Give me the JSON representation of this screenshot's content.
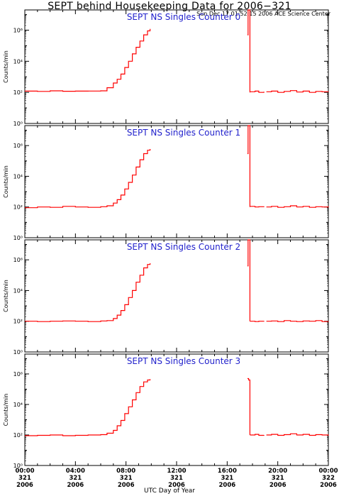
{
  "title": "SEPT behind Housekeeping Data for 2006−321",
  "subtitle": "Sun Dec 17 01:52:15 2006 ACE Science Center",
  "xlabel": "UTC Day of Year",
  "colors": {
    "series": "#ff0000",
    "panel_title": "#2222cc",
    "axes": "#000000"
  },
  "chart_data": {
    "type": "line",
    "x_ticks": [
      {
        "time": "00:00",
        "day": "321",
        "year": "2006"
      },
      {
        "time": "04:00",
        "day": "321",
        "year": "2006"
      },
      {
        "time": "08:00",
        "day": "321",
        "year": "2006"
      },
      {
        "time": "12:00",
        "day": "321",
        "year": "2006"
      },
      {
        "time": "16:00",
        "day": "321",
        "year": "2006"
      },
      {
        "time": "20:00",
        "day": "321",
        "year": "2006"
      },
      {
        "time": "00:00",
        "day": "322",
        "year": "2006"
      }
    ],
    "xlim_hours": [
      0,
      24
    ],
    "y_scale": "log",
    "ylim": [
      1,
      20000000
    ],
    "y_ticks": [
      "10^0",
      "10^2",
      "10^4",
      "10^6"
    ],
    "panels": [
      {
        "title": "SEPT NS Singles Counter 0",
        "ylabel": "Counts/min",
        "segments": [
          {
            "x": [
              0,
              1,
              2,
              3,
              4,
              5,
              6,
              6.5,
              7,
              7.3,
              7.6,
              7.9,
              8.2,
              8.5,
              8.8,
              9.1,
              9.4,
              9.7,
              9.9
            ],
            "y": [
              120,
              115,
              125,
              118,
              120,
              122,
              125,
              200,
              400,
              700,
              1500,
              4000,
              10000,
              30000,
              80000,
              200000,
              500000,
              900000,
              1200000
            ]
          },
          {
            "x": [
              17.6,
              17.65,
              17.7,
              17.75,
              17.8
            ],
            "y": [
              500000,
              20000000,
              20000000,
              20000000,
              100
            ]
          },
          {
            "x": [
              17.8,
              18.2,
              18.5,
              18.9
            ],
            "y": [
              110,
              120,
              100,
              110
            ]
          },
          {
            "x": [
              19.1,
              19.5,
              20,
              20.5,
              21,
              21.5,
              22,
              22.5,
              23,
              23.5,
              24
            ],
            "y": [
              110,
              120,
              100,
              115,
              130,
              105,
              120,
              100,
              115,
              110,
              105
            ]
          }
        ]
      },
      {
        "title": "SEPT NS Singles Counter 1",
        "ylabel": "Counts/min",
        "segments": [
          {
            "x": [
              0,
              1,
              2,
              3,
              4,
              5,
              6,
              6.5,
              7,
              7.3,
              7.6,
              7.9,
              8.2,
              8.5,
              8.8,
              9.1,
              9.4,
              9.7,
              9.9
            ],
            "y": [
              90,
              100,
              95,
              110,
              100,
              95,
              105,
              120,
              180,
              300,
              600,
              1500,
              4000,
              12000,
              40000,
              120000,
              300000,
              500000,
              600000
            ]
          },
          {
            "x": [
              17.6,
              17.65,
              17.7,
              17.75,
              17.8
            ],
            "y": [
              300000,
              20000000,
              20000000,
              20000000,
              100
            ]
          },
          {
            "x": [
              17.8,
              18.2,
              18.5,
              18.9
            ],
            "y": [
              110,
              100,
              105,
              110
            ]
          },
          {
            "x": [
              19.1,
              19.5,
              20,
              20.5,
              21,
              21.5,
              22,
              22.5,
              23,
              23.5,
              24
            ],
            "y": [
              100,
              110,
              95,
              105,
              120,
              100,
              110,
              95,
              105,
              100,
              110
            ]
          }
        ]
      },
      {
        "title": "SEPT NS Singles Counter 2",
        "ylabel": "Counts/min",
        "segments": [
          {
            "x": [
              0,
              1,
              2,
              3,
              4,
              5,
              6,
              6.5,
              7,
              7.3,
              7.6,
              7.9,
              8.2,
              8.5,
              8.8,
              9.1,
              9.4,
              9.7,
              9.9
            ],
            "y": [
              100,
              95,
              100,
              105,
              100,
              95,
              105,
              110,
              150,
              250,
              500,
              1200,
              3500,
              10000,
              35000,
              100000,
              300000,
              500000,
              600000
            ]
          },
          {
            "x": [
              17.6,
              17.65,
              17.7,
              17.75,
              17.8
            ],
            "y": [
              400000,
              20000000,
              20000000,
              20000000,
              100
            ]
          },
          {
            "x": [
              17.8,
              18.2,
              18.5,
              18.9
            ],
            "y": [
              100,
              95,
              100,
              105
            ]
          },
          {
            "x": [
              19.1,
              19.5,
              20,
              20.5,
              21,
              21.5,
              22,
              22.5,
              23,
              23.5,
              24
            ],
            "y": [
              100,
              105,
              95,
              110,
              100,
              95,
              105,
              100,
              110,
              95,
              100
            ]
          }
        ]
      },
      {
        "title": "SEPT NS Singles Counter 3",
        "ylabel": "Counts/min",
        "segments": [
          {
            "x": [
              0,
              1,
              2,
              3,
              4,
              5,
              6,
              6.5,
              7,
              7.3,
              7.6,
              7.9,
              8.2,
              8.5,
              8.8,
              9.1,
              9.4,
              9.7,
              9.9
            ],
            "y": [
              90,
              95,
              100,
              90,
              95,
              100,
              105,
              130,
              200,
              400,
              900,
              2500,
              7000,
              20000,
              60000,
              150000,
              300000,
              400000,
              450000
            ]
          },
          {
            "x": [
              17.6,
              17.7,
              17.8
            ],
            "y": [
              500000,
              400000,
              100
            ]
          },
          {
            "x": [
              17.8,
              18.2,
              18.5,
              18.9
            ],
            "y": [
              100,
              110,
              95,
              100
            ]
          },
          {
            "x": [
              19.1,
              19.5,
              20,
              20.5,
              21,
              21.5,
              22,
              22.5,
              23,
              23.5,
              24
            ],
            "y": [
              100,
              110,
              95,
              105,
              120,
              100,
              110,
              95,
              105,
              100,
              90
            ]
          }
        ]
      }
    ]
  }
}
